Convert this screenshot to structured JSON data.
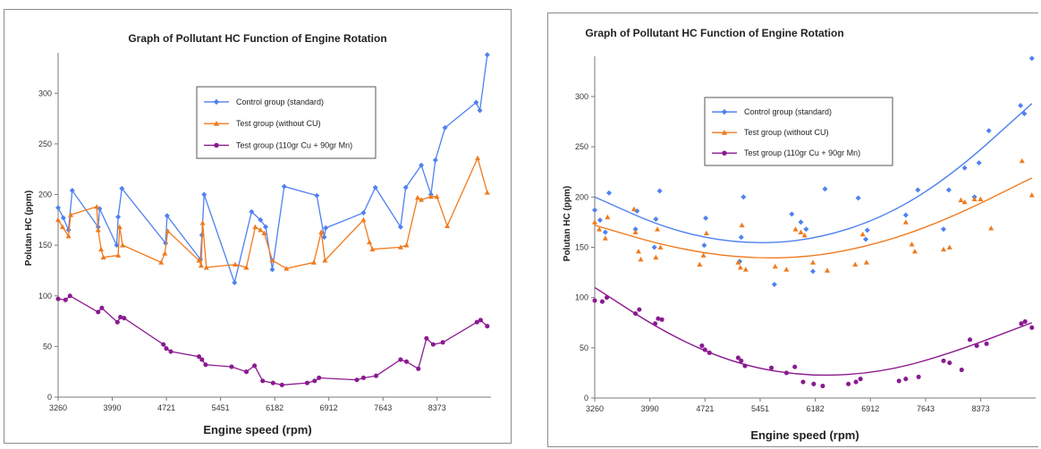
{
  "chart_data": [
    {
      "type": "line",
      "panel": "left",
      "title": "Graph of Pollutant HC Function of Engine Rotation",
      "xlabel": "Engine speed (rpm)",
      "ylabel": "Polutan HC (ppm)",
      "x_ticks": [
        "3260",
        "3990",
        "4721",
        "5451",
        "6182",
        "6912",
        "7643",
        "8373"
      ],
      "y_ticks": [
        0,
        50,
        100,
        150,
        200,
        250,
        300
      ],
      "xlim": [
        3260,
        9100
      ],
      "ylim": [
        0,
        340
      ],
      "legend_position": "top-center",
      "series": [
        {
          "name": "Control group (standard)",
          "color": "#4f81f0",
          "marker": "diamond",
          "points": [
            [
              3260,
              187
            ],
            [
              3330,
              177
            ],
            [
              3400,
              165
            ],
            [
              3450,
              204
            ],
            [
              3800,
              168
            ],
            [
              3820,
              186
            ],
            [
              4050,
              150
            ],
            [
              4070,
              178
            ],
            [
              4120,
              206
            ],
            [
              4710,
              152
            ],
            [
              4730,
              179
            ],
            [
              5180,
              136
            ],
            [
              5200,
              160
            ],
            [
              5230,
              200
            ],
            [
              5640,
              113
            ],
            [
              5870,
              183
            ],
            [
              5990,
              175
            ],
            [
              6060,
              168
            ],
            [
              6150,
              126
            ],
            [
              6310,
              208
            ],
            [
              6750,
              199
            ],
            [
              6850,
              158
            ],
            [
              6870,
              167
            ],
            [
              7380,
              182
            ],
            [
              7540,
              207
            ],
            [
              7880,
              168
            ],
            [
              7950,
              207
            ],
            [
              8160,
              229
            ],
            [
              8290,
              200
            ],
            [
              8350,
              234
            ],
            [
              8480,
              266
            ],
            [
              8900,
              291
            ],
            [
              8950,
              283
            ],
            [
              9050,
              338
            ]
          ]
        },
        {
          "name": "Test group (without CU)",
          "color": "#f07a1e",
          "marker": "triangle",
          "points": [
            [
              3260,
              175
            ],
            [
              3320,
              168
            ],
            [
              3400,
              159
            ],
            [
              3430,
              180
            ],
            [
              3780,
              188
            ],
            [
              3800,
              165
            ],
            [
              3840,
              146
            ],
            [
              3870,
              138
            ],
            [
              4070,
              140
            ],
            [
              4090,
              168
            ],
            [
              4130,
              150
            ],
            [
              4650,
              133
            ],
            [
              4700,
              142
            ],
            [
              4740,
              164
            ],
            [
              5160,
              135
            ],
            [
              5190,
              130
            ],
            [
              5210,
              172
            ],
            [
              5260,
              128
            ],
            [
              5650,
              131
            ],
            [
              5800,
              128
            ],
            [
              5920,
              168
            ],
            [
              5990,
              165
            ],
            [
              6040,
              162
            ],
            [
              6150,
              135
            ],
            [
              6340,
              127
            ],
            [
              6710,
              133
            ],
            [
              6810,
              163
            ],
            [
              6860,
              135
            ],
            [
              7380,
              175
            ],
            [
              7460,
              153
            ],
            [
              7500,
              146
            ],
            [
              7880,
              148
            ],
            [
              7960,
              150
            ],
            [
              8110,
              197
            ],
            [
              8160,
              195
            ],
            [
              8290,
              198
            ],
            [
              8370,
              198
            ],
            [
              8510,
              169
            ],
            [
              8920,
              236
            ],
            [
              9050,
              202
            ]
          ]
        },
        {
          "name": "Test group (110gr Cu + 90gr Mn)",
          "color": "#8a1a8f",
          "marker": "circle",
          "points": [
            [
              3260,
              97
            ],
            [
              3360,
              96
            ],
            [
              3420,
              100
            ],
            [
              3800,
              84
            ],
            [
              3850,
              88
            ],
            [
              4060,
              74
            ],
            [
              4100,
              79
            ],
            [
              4150,
              78
            ],
            [
              4680,
              52
            ],
            [
              4720,
              48
            ],
            [
              4780,
              45
            ],
            [
              5160,
              40
            ],
            [
              5200,
              37
            ],
            [
              5250,
              32
            ],
            [
              5600,
              30
            ],
            [
              5800,
              25
            ],
            [
              5910,
              31
            ],
            [
              6020,
              16
            ],
            [
              6160,
              14
            ],
            [
              6280,
              12
            ],
            [
              6620,
              14
            ],
            [
              6720,
              16
            ],
            [
              6780,
              19
            ],
            [
              7290,
              17
            ],
            [
              7380,
              19
            ],
            [
              7550,
              21
            ],
            [
              7880,
              37
            ],
            [
              7960,
              35
            ],
            [
              8120,
              28
            ],
            [
              8230,
              58
            ],
            [
              8320,
              52
            ],
            [
              8450,
              54
            ],
            [
              8910,
              74
            ],
            [
              8960,
              76
            ],
            [
              9050,
              70
            ]
          ]
        }
      ]
    },
    {
      "type": "scatter",
      "panel": "right",
      "title": "Graph of Pollutant HC Function of Engine Rotation",
      "xlabel": "Engine speed (rpm)",
      "ylabel": "Polutan HC (ppm)",
      "x_ticks": [
        "3260",
        "3990",
        "4721",
        "5451",
        "6182",
        "6912",
        "7643",
        "8373"
      ],
      "y_ticks": [
        0,
        50,
        100,
        150,
        200,
        250,
        300
      ],
      "xlim": [
        3260,
        9100
      ],
      "ylim": [
        0,
        340
      ],
      "legend_position": "top-center",
      "trendline": "polynomial order 2",
      "series": [
        {
          "name": "Control group (standard)",
          "color": "#4f81f0",
          "marker": "diamond",
          "trend": [
            [
              3260,
              200
            ],
            [
              4250,
              167
            ],
            [
              5200,
              153
            ],
            [
              6150,
              157
            ],
            [
              7100,
              180
            ],
            [
              8000,
              222
            ],
            [
              9050,
              293
            ]
          ],
          "points": [
            [
              3260,
              187
            ],
            [
              3330,
              177
            ],
            [
              3400,
              165
            ],
            [
              3450,
              204
            ],
            [
              3800,
              168
            ],
            [
              3820,
              186
            ],
            [
              4050,
              150
            ],
            [
              4070,
              178
            ],
            [
              4120,
              206
            ],
            [
              4710,
              152
            ],
            [
              4730,
              179
            ],
            [
              5180,
              136
            ],
            [
              5200,
              160
            ],
            [
              5230,
              200
            ],
            [
              5640,
              113
            ],
            [
              5870,
              183
            ],
            [
              5990,
              175
            ],
            [
              6060,
              168
            ],
            [
              6150,
              126
            ],
            [
              6310,
              208
            ],
            [
              6750,
              199
            ],
            [
              6850,
              158
            ],
            [
              6870,
              167
            ],
            [
              7380,
              182
            ],
            [
              7540,
              207
            ],
            [
              7880,
              168
            ],
            [
              7950,
              207
            ],
            [
              8160,
              229
            ],
            [
              8290,
              200
            ],
            [
              8350,
              234
            ],
            [
              8480,
              266
            ],
            [
              8900,
              291
            ],
            [
              8950,
              283
            ],
            [
              9050,
              338
            ]
          ]
        },
        {
          "name": "Test group (without CU)",
          "color": "#f07a1e",
          "marker": "triangle",
          "trend": [
            [
              3260,
              172
            ],
            [
              4250,
              150
            ],
            [
              5200,
              139
            ],
            [
              6150,
              140
            ],
            [
              7100,
              155
            ],
            [
              8000,
              180
            ],
            [
              9050,
              219
            ]
          ],
          "points": [
            [
              3260,
              175
            ],
            [
              3320,
              168
            ],
            [
              3400,
              159
            ],
            [
              3430,
              180
            ],
            [
              3780,
              188
            ],
            [
              3800,
              165
            ],
            [
              3840,
              146
            ],
            [
              3870,
              138
            ],
            [
              4070,
              140
            ],
            [
              4090,
              168
            ],
            [
              4130,
              150
            ],
            [
              4650,
              133
            ],
            [
              4700,
              142
            ],
            [
              4740,
              164
            ],
            [
              5160,
              135
            ],
            [
              5190,
              130
            ],
            [
              5210,
              172
            ],
            [
              5260,
              128
            ],
            [
              5650,
              131
            ],
            [
              5800,
              128
            ],
            [
              5920,
              168
            ],
            [
              5990,
              165
            ],
            [
              6040,
              162
            ],
            [
              6150,
              135
            ],
            [
              6340,
              127
            ],
            [
              6710,
              133
            ],
            [
              6810,
              163
            ],
            [
              6860,
              135
            ],
            [
              7380,
              175
            ],
            [
              7460,
              153
            ],
            [
              7500,
              146
            ],
            [
              7880,
              148
            ],
            [
              7960,
              150
            ],
            [
              8110,
              197
            ],
            [
              8160,
              195
            ],
            [
              8290,
              198
            ],
            [
              8370,
              198
            ],
            [
              8510,
              169
            ],
            [
              8920,
              236
            ],
            [
              9050,
              202
            ]
          ]
        },
        {
          "name": "Test group (110gr Cu + 90gr Mn)",
          "color": "#8a1a8f",
          "marker": "circle",
          "trend": [
            [
              3260,
              110
            ],
            [
              4250,
              62
            ],
            [
              5200,
              32
            ],
            [
              6150,
              21
            ],
            [
              7100,
              26
            ],
            [
              8000,
              45
            ],
            [
              9050,
              75
            ]
          ],
          "points": [
            [
              3260,
              97
            ],
            [
              3360,
              96
            ],
            [
              3420,
              100
            ],
            [
              3800,
              84
            ],
            [
              3850,
              88
            ],
            [
              4060,
              74
            ],
            [
              4100,
              79
            ],
            [
              4150,
              78
            ],
            [
              4680,
              52
            ],
            [
              4720,
              48
            ],
            [
              4780,
              45
            ],
            [
              5160,
              40
            ],
            [
              5200,
              37
            ],
            [
              5250,
              32
            ],
            [
              5600,
              30
            ],
            [
              5800,
              25
            ],
            [
              5910,
              31
            ],
            [
              6020,
              16
            ],
            [
              6160,
              14
            ],
            [
              6280,
              12
            ],
            [
              6620,
              14
            ],
            [
              6720,
              16
            ],
            [
              6780,
              19
            ],
            [
              7290,
              17
            ],
            [
              7380,
              19
            ],
            [
              7550,
              21
            ],
            [
              7880,
              37
            ],
            [
              7960,
              35
            ],
            [
              8120,
              28
            ],
            [
              8230,
              58
            ],
            [
              8320,
              52
            ],
            [
              8450,
              54
            ],
            [
              8910,
              74
            ],
            [
              8960,
              76
            ],
            [
              9050,
              70
            ]
          ]
        }
      ]
    }
  ]
}
